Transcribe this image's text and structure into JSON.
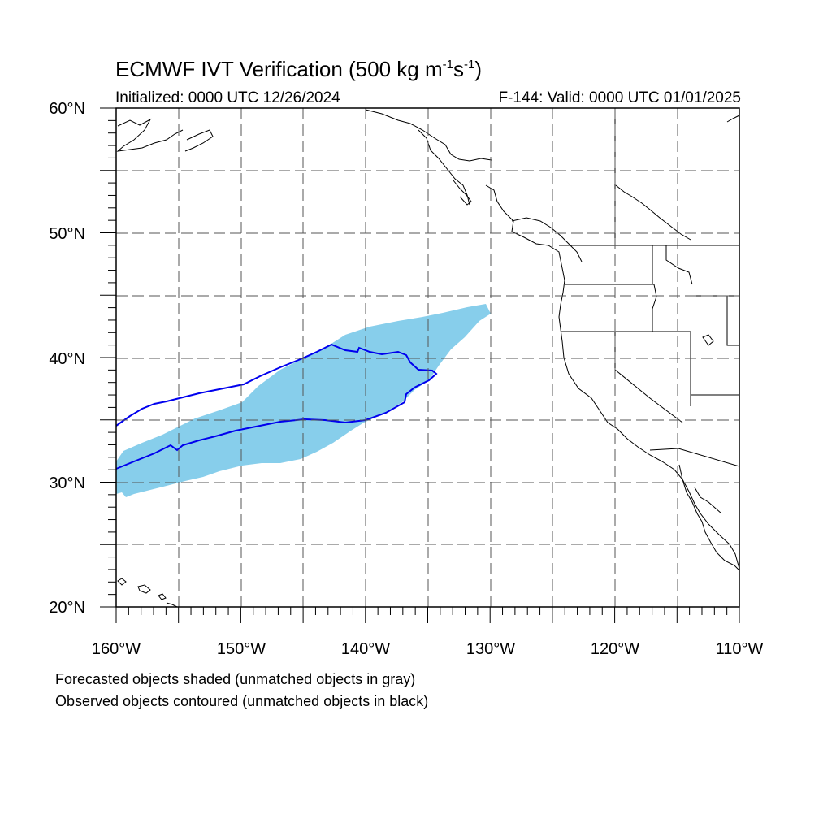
{
  "header": {
    "title_main": "ECMWF IVT Verification (500 kg m",
    "title_exp1": "-1",
    "title_mid": "s",
    "title_exp2": "-1",
    "title_end": ")",
    "initialized": "Initialized: 0000 UTC 12/26/2024",
    "valid": "F-144: Valid: 0000 UTC 01/01/2025"
  },
  "map": {
    "projection": "cylindrical equidistant",
    "lon_range": [
      -160,
      -110
    ],
    "lat_range": [
      20,
      60
    ],
    "grid": "dashed every 5 degrees",
    "lat_labels": [
      "60°N",
      "50°N",
      "40°N",
      "30°N",
      "20°N"
    ],
    "lon_labels": [
      "160°W",
      "150°W",
      "140°W",
      "130°W",
      "120°W",
      "110°W"
    ],
    "colors": {
      "forecast_fill": "#87ceeb",
      "observed_contour": "#0000ee",
      "coast": "#000000",
      "grid": "#555555"
    }
  },
  "footer": {
    "note1": "Forecasted objects shaded (unmatched objects in gray)",
    "note2": "Observed objects contoured (unmatched objects in black)"
  }
}
